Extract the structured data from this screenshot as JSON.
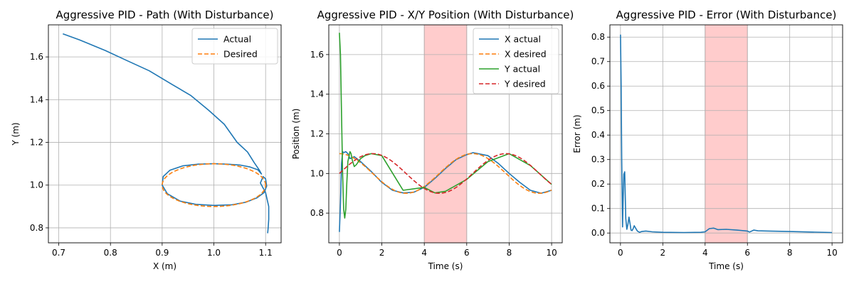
{
  "chart_data": [
    {
      "type": "line",
      "title": "Aggressive PID - Path (With Disturbance)",
      "xlabel": "X (m)",
      "ylabel": "Y (m)",
      "xlim": [
        0.68,
        1.13
      ],
      "ylim": [
        0.73,
        1.75
      ],
      "xticks": [
        "0.7",
        "0.8",
        "0.9",
        "1.0",
        "1.1"
      ],
      "yticks": [
        "0.8",
        "1.0",
        "1.2",
        "1.4",
        "1.6"
      ],
      "grid": true,
      "legend": "top-right",
      "series": [
        {
          "name": "Actual",
          "color": "#1f77b4",
          "style": "solid",
          "x": [
            0.708,
            0.74,
            0.79,
            0.83,
            0.875,
            0.92,
            0.955,
            0.99,
            1.02,
            1.045,
            1.065,
            1.078,
            1.088,
            1.092,
            1.085,
            1.07,
            1.05,
            1.025,
            1.0,
            0.97,
            0.94,
            0.915,
            0.902,
            0.9,
            0.91,
            0.935,
            0.965,
            1.0,
            1.035,
            1.062,
            1.083,
            1.097,
            1.102,
            1.1,
            1.095,
            1.09,
            1.1,
            1.106,
            1.106,
            1.105,
            1.104
          ],
          "y": [
            1.708,
            1.68,
            1.63,
            1.585,
            1.535,
            1.47,
            1.42,
            1.35,
            1.285,
            1.2,
            1.155,
            1.105,
            1.07,
            1.052,
            1.072,
            1.085,
            1.094,
            1.098,
            1.1,
            1.098,
            1.09,
            1.07,
            1.04,
            1.0,
            0.96,
            0.925,
            0.91,
            0.905,
            0.908,
            0.92,
            0.94,
            0.965,
            0.995,
            1.03,
            1.04,
            1.01,
            0.965,
            0.9,
            0.84,
            0.8,
            0.775
          ]
        },
        {
          "name": "Desired",
          "color": "#ff7f0e",
          "style": "dashed",
          "ellipse": {
            "cx": 1.0,
            "cy": 1.0,
            "rx": 0.1,
            "ry": 0.1
          }
        }
      ]
    },
    {
      "type": "line",
      "title": "Aggressive PID - X/Y Position (With Disturbance)",
      "xlabel": "Time (s)",
      "ylabel": "Position (m)",
      "xlim": [
        -0.5,
        10.5
      ],
      "ylim": [
        0.65,
        1.75
      ],
      "xticks": [
        "0",
        "2",
        "4",
        "6",
        "8",
        "10"
      ],
      "yticks": [
        "0.8",
        "1.0",
        "1.2",
        "1.4",
        "1.6"
      ],
      "grid": true,
      "legend": "top-right",
      "disturbance_window": [
        4,
        6
      ],
      "series": [
        {
          "name": "X actual",
          "color": "#1f77b4",
          "style": "solid",
          "x": [
            0,
            0.05,
            0.1,
            0.15,
            0.2,
            0.3,
            0.4,
            0.5,
            0.7,
            1,
            1.5,
            2,
            2.5,
            3,
            3.5,
            4,
            4.5,
            5,
            5.5,
            6,
            6.3,
            7,
            7.5,
            8,
            8.5,
            9,
            9.5,
            10
          ],
          "y": [
            0.705,
            0.85,
            1.05,
            1.11,
            1.105,
            1.11,
            1.1,
            1.075,
            1.085,
            1.06,
            1.01,
            0.955,
            0.915,
            0.902,
            0.905,
            0.93,
            0.975,
            1.025,
            1.07,
            1.095,
            1.105,
            1.09,
            1.05,
            1.0,
            0.955,
            0.915,
            0.9,
            0.915
          ]
        },
        {
          "name": "X desired",
          "color": "#ff7f0e",
          "style": "dashed",
          "func": "cos",
          "amplitude": 0.1,
          "offset": 1.0,
          "period": 6.28
        },
        {
          "name": "Y actual",
          "color": "#2ca02c",
          "style": "solid",
          "x": [
            0,
            0.05,
            0.1,
            0.15,
            0.2,
            0.25,
            0.3,
            0.35,
            0.4,
            0.5,
            0.55,
            0.6,
            0.7,
            0.8,
            0.9,
            1.0,
            1.2,
            1.5,
            2,
            3,
            4,
            4.5,
            5,
            6,
            7,
            8,
            9,
            10
          ],
          "y": [
            1.71,
            1.6,
            1.3,
            1.0,
            0.82,
            0.775,
            0.82,
            0.95,
            1.06,
            1.11,
            1.1,
            1.07,
            1.035,
            1.045,
            1.06,
            1.075,
            1.09,
            1.1,
            1.09,
            0.915,
            0.93,
            0.902,
            0.91,
            0.97,
            1.06,
            1.1,
            1.04,
            0.945
          ]
        },
        {
          "name": "Y desired",
          "color": "#d62728",
          "style": "dashed",
          "func": "sin",
          "amplitude": 0.1,
          "offset": 1.0,
          "period": 6.28
        }
      ]
    },
    {
      "type": "line",
      "title": "Aggressive PID - Error (With Disturbance)",
      "xlabel": "Time (s)",
      "ylabel": "Error (m)",
      "xlim": [
        -0.5,
        10.5
      ],
      "ylim": [
        -0.04,
        0.85
      ],
      "xticks": [
        "0",
        "2",
        "4",
        "6",
        "8",
        "10"
      ],
      "yticks": [
        "0.0",
        "0.1",
        "0.2",
        "0.3",
        "0.4",
        "0.5",
        "0.6",
        "0.7",
        "0.8"
      ],
      "grid": true,
      "disturbance_window": [
        4,
        6
      ],
      "series": [
        {
          "name": "Error",
          "color": "#1f77b4",
          "style": "solid",
          "x": [
            0,
            0.03,
            0.06,
            0.1,
            0.13,
            0.16,
            0.2,
            0.25,
            0.3,
            0.35,
            0.4,
            0.45,
            0.5,
            0.55,
            0.6,
            0.65,
            0.7,
            0.8,
            0.9,
            1.0,
            1.2,
            1.5,
            2,
            3,
            3.8,
            4.0,
            4.2,
            4.4,
            4.6,
            5,
            5.5,
            6,
            6.1,
            6.3,
            6.5,
            7,
            8,
            9,
            10
          ],
          "y": [
            0.81,
            0.6,
            0.3,
            0.025,
            0.15,
            0.24,
            0.25,
            0.06,
            0.015,
            0.035,
            0.065,
            0.04,
            0.012,
            0.01,
            0.018,
            0.03,
            0.022,
            0.008,
            0.003,
            0.006,
            0.008,
            0.005,
            0.003,
            0.002,
            0.003,
            0.005,
            0.018,
            0.02,
            0.014,
            0.015,
            0.012,
            0.008,
            0.004,
            0.012,
            0.009,
            0.008,
            0.006,
            0.004,
            0.002
          ]
        }
      ]
    }
  ]
}
